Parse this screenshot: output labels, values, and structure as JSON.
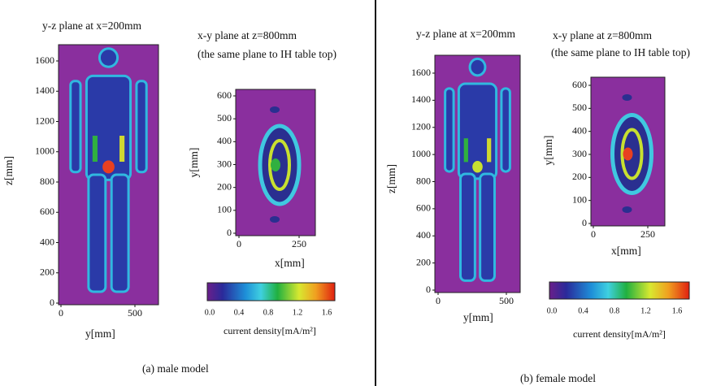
{
  "panels": [
    {
      "yz": {
        "title": "y-z plane at x=200mm",
        "y_label": "z[mm]",
        "x_label": "y[mm]",
        "yticks": [
          "0",
          "200",
          "400",
          "600",
          "800",
          "1000",
          "1200",
          "1400",
          "1600"
        ],
        "xticks": [
          "0",
          "500"
        ]
      },
      "xy": {
        "title": "x-y plane at z=800mm",
        "subtitle": "(the same plane to IH table top)",
        "y_label": "y[mm]",
        "x_label": "x[mm]",
        "yticks": [
          "0",
          "100",
          "200",
          "300",
          "400",
          "500",
          "600"
        ],
        "xticks": [
          "0",
          "250"
        ]
      },
      "colorbar": {
        "ticks": [
          "0.0",
          "0.4",
          "0.8",
          "1.2",
          "1.6"
        ],
        "label": "current density[mA/m²]"
      },
      "caption": "(a) male model"
    },
    {
      "yz": {
        "title": "y-z plane at x=200mm",
        "y_label": "z[mm]",
        "x_label": "y[mm]",
        "yticks": [
          "0",
          "200",
          "400",
          "600",
          "800",
          "1000",
          "1200",
          "1400",
          "1600"
        ],
        "xticks": [
          "0",
          "500"
        ]
      },
      "xy": {
        "title": "x-y plane at z=800mm",
        "subtitle": "(the same plane to IH table top)",
        "y_label": "y[mm]",
        "x_label": "x[mm]",
        "yticks": [
          "0",
          "100",
          "200",
          "300",
          "400",
          "500",
          "600"
        ],
        "xticks": [
          "0",
          "250"
        ]
      },
      "colorbar": {
        "ticks": [
          "0.0",
          "0.4",
          "0.8",
          "1.2",
          "1.6"
        ],
        "label": "current density[mA/m²]"
      },
      "caption": "(b) female model"
    }
  ]
}
